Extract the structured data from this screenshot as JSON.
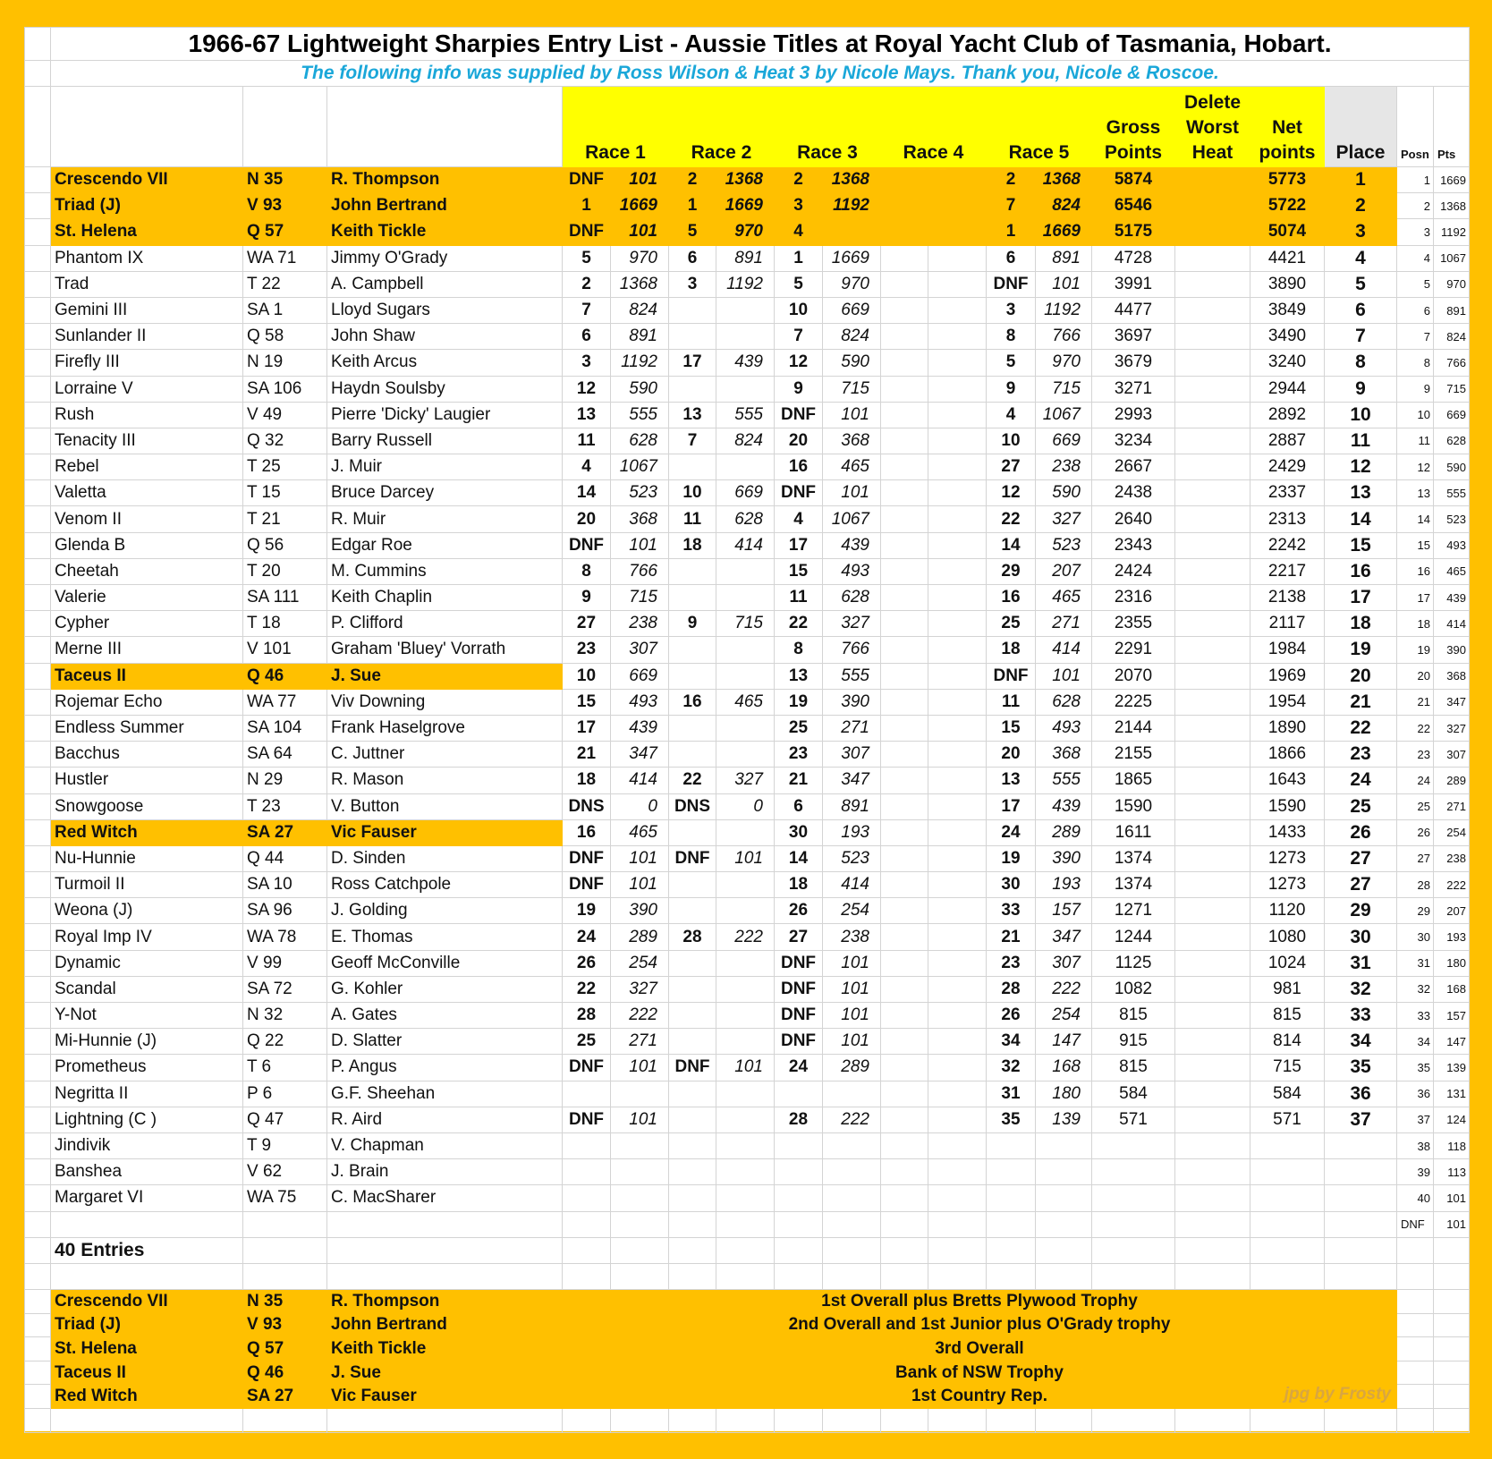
{
  "title": "1966-67 Lightweight Sharpies Entry List - Aussie Titles at Royal Yacht Club of Tasmania, Hobart.",
  "subtitle": "The following info was supplied by Ross Wilson & Heat 3 by Nicole Mays. Thank you, Nicole & Roscoe.",
  "colors": {
    "border": "#ffc000",
    "header_yellow": "#ffff00",
    "highlight": "#ffc000",
    "subtitle": "#1aa7d9"
  },
  "headers": {
    "race1": "Race 1",
    "race2": "Race 2",
    "race3": "Race 3",
    "race4": "Race 4",
    "race5": "Race 5",
    "gross": [
      "Gross",
      "Points"
    ],
    "delete": [
      "Delete",
      "Worst",
      "Heat"
    ],
    "net": [
      "Net",
      "points"
    ],
    "place": "Place",
    "posn": "Posn",
    "pts": "Pts"
  },
  "rows": [
    {
      "highlight": "full",
      "cells": [
        "Crescendo VII",
        "N 35",
        "R. Thompson",
        "DNF",
        "101",
        "2",
        "1368",
        "2",
        "1368",
        "",
        "",
        "2",
        "1368",
        "5874",
        "",
        "5773",
        "1",
        "1",
        "1669"
      ]
    },
    {
      "highlight": "full",
      "cells": [
        "Triad (J)",
        "V 93",
        "John Bertrand",
        "1",
        "1669",
        "1",
        "1669",
        "3",
        "1192",
        "",
        "",
        "7",
        "824",
        "6546",
        "",
        "5722",
        "2",
        "2",
        "1368"
      ]
    },
    {
      "highlight": "full",
      "cells": [
        "St. Helena",
        "Q 57",
        "Keith Tickle",
        "DNF",
        "101",
        "5",
        "970",
        "4",
        "",
        "",
        "",
        "1",
        "1669",
        "5175",
        "",
        "5074",
        "3",
        "3",
        "1192"
      ]
    },
    {
      "cells": [
        "Phantom IX",
        "WA 71",
        "Jimmy O'Grady",
        "5",
        "970",
        "6",
        "891",
        "1",
        "1669",
        "",
        "",
        "6",
        "891",
        "4728",
        "",
        "4421",
        "4",
        "4",
        "1067"
      ]
    },
    {
      "cells": [
        "Trad",
        "T 22",
        "A. Campbell",
        "2",
        "1368",
        "3",
        "1192",
        "5",
        "970",
        "",
        "",
        "DNF",
        "101",
        "3991",
        "",
        "3890",
        "5",
        "5",
        "970"
      ]
    },
    {
      "cells": [
        "Gemini III",
        "SA 1",
        "Lloyd Sugars",
        "7",
        "824",
        "",
        "",
        "10",
        "669",
        "",
        "",
        "3",
        "1192",
        "4477",
        "",
        "3849",
        "6",
        "6",
        "891"
      ]
    },
    {
      "cells": [
        "Sunlander II",
        "Q 58",
        "John Shaw",
        "6",
        "891",
        "",
        "",
        "7",
        "824",
        "",
        "",
        "8",
        "766",
        "3697",
        "",
        "3490",
        "7",
        "7",
        "824"
      ]
    },
    {
      "cells": [
        "Firefly III",
        "N 19",
        "Keith Arcus",
        "3",
        "1192",
        "17",
        "439",
        "12",
        "590",
        "",
        "",
        "5",
        "970",
        "3679",
        "",
        "3240",
        "8",
        "8",
        "766"
      ]
    },
    {
      "cells": [
        "Lorraine V",
        "SA 106",
        "Haydn Soulsby",
        "12",
        "590",
        "",
        "",
        "9",
        "715",
        "",
        "",
        "9",
        "715",
        "3271",
        "",
        "2944",
        "9",
        "9",
        "715"
      ]
    },
    {
      "cells": [
        "Rush",
        "V 49",
        "Pierre 'Dicky' Laugier",
        "13",
        "555",
        "13",
        "555",
        "DNF",
        "101",
        "",
        "",
        "4",
        "1067",
        "2993",
        "",
        "2892",
        "10",
        "10",
        "669"
      ]
    },
    {
      "cells": [
        "Tenacity III",
        "Q 32",
        "Barry Russell",
        "11",
        "628",
        "7",
        "824",
        "20",
        "368",
        "",
        "",
        "10",
        "669",
        "3234",
        "",
        "2887",
        "11",
        "11",
        "628"
      ]
    },
    {
      "cells": [
        "Rebel",
        "T 25",
        "J. Muir",
        "4",
        "1067",
        "",
        "",
        "16",
        "465",
        "",
        "",
        "27",
        "238",
        "2667",
        "",
        "2429",
        "12",
        "12",
        "590"
      ]
    },
    {
      "cells": [
        "Valetta",
        "T 15",
        "Bruce Darcey",
        "14",
        "523",
        "10",
        "669",
        "DNF",
        "101",
        "",
        "",
        "12",
        "590",
        "2438",
        "",
        "2337",
        "13",
        "13",
        "555"
      ]
    },
    {
      "cells": [
        "Venom II",
        "T 21",
        "R. Muir",
        "20",
        "368",
        "11",
        "628",
        "4",
        "1067",
        "",
        "",
        "22",
        "327",
        "2640",
        "",
        "2313",
        "14",
        "14",
        "523"
      ]
    },
    {
      "cells": [
        "Glenda B",
        "Q 56",
        "Edgar Roe",
        "DNF",
        "101",
        "18",
        "414",
        "17",
        "439",
        "",
        "",
        "14",
        "523",
        "2343",
        "",
        "2242",
        "15",
        "15",
        "493"
      ]
    },
    {
      "cells": [
        "Cheetah",
        "T 20",
        "M. Cummins",
        "8",
        "766",
        "",
        "",
        "15",
        "493",
        "",
        "",
        "29",
        "207",
        "2424",
        "",
        "2217",
        "16",
        "16",
        "465"
      ]
    },
    {
      "cells": [
        "Valerie",
        "SA 111",
        "Keith Chaplin",
        "9",
        "715",
        "",
        "",
        "11",
        "628",
        "",
        "",
        "16",
        "465",
        "2316",
        "",
        "2138",
        "17",
        "17",
        "439"
      ]
    },
    {
      "cells": [
        "Cypher",
        "T 18",
        "P. Clifford",
        "27",
        "238",
        "9",
        "715",
        "22",
        "327",
        "",
        "",
        "25",
        "271",
        "2355",
        "",
        "2117",
        "18",
        "18",
        "414"
      ]
    },
    {
      "cells": [
        "Merne III",
        "V 101",
        "Graham 'Bluey' Vorrath",
        "23",
        "307",
        "",
        "",
        "8",
        "766",
        "",
        "",
        "18",
        "414",
        "2291",
        "",
        "1984",
        "19",
        "19",
        "390"
      ]
    },
    {
      "highlight": "name",
      "cells": [
        "Taceus II",
        "Q 46",
        "J. Sue",
        "10",
        "669",
        "",
        "",
        "13",
        "555",
        "",
        "",
        "DNF",
        "101",
        "2070",
        "",
        "1969",
        "20",
        "20",
        "368"
      ]
    },
    {
      "cells": [
        "Rojemar Echo",
        "WA 77",
        "Viv Downing",
        "15",
        "493",
        "16",
        "465",
        "19",
        "390",
        "",
        "",
        "11",
        "628",
        "2225",
        "",
        "1954",
        "21",
        "21",
        "347"
      ]
    },
    {
      "cells": [
        "Endless Summer",
        "SA 104",
        "Frank Haselgrove",
        "17",
        "439",
        "",
        "",
        "25",
        "271",
        "",
        "",
        "15",
        "493",
        "2144",
        "",
        "1890",
        "22",
        "22",
        "327"
      ]
    },
    {
      "cells": [
        "Bacchus",
        "SA 64",
        "C. Juttner",
        "21",
        "347",
        "",
        "",
        "23",
        "307",
        "",
        "",
        "20",
        "368",
        "2155",
        "",
        "1866",
        "23",
        "23",
        "307"
      ]
    },
    {
      "cells": [
        "Hustler",
        "N 29",
        "R. Mason",
        "18",
        "414",
        "22",
        "327",
        "21",
        "347",
        "",
        "",
        "13",
        "555",
        "1865",
        "",
        "1643",
        "24",
        "24",
        "289"
      ]
    },
    {
      "cells": [
        "Snowgoose",
        "T 23",
        "V. Button",
        "DNS",
        "0",
        "DNS",
        "0",
        "6",
        "891",
        "",
        "",
        "17",
        "439",
        "1590",
        "",
        "1590",
        "25",
        "25",
        "271"
      ]
    },
    {
      "highlight": "name",
      "cells": [
        "Red Witch",
        "SA 27",
        "Vic Fauser",
        "16",
        "465",
        "",
        "",
        "30",
        "193",
        "",
        "",
        "24",
        "289",
        "1611",
        "",
        "1433",
        "26",
        "26",
        "254"
      ]
    },
    {
      "cells": [
        "Nu-Hunnie",
        "Q 44",
        "D. Sinden",
        "DNF",
        "101",
        "DNF",
        "101",
        "14",
        "523",
        "",
        "",
        "19",
        "390",
        "1374",
        "",
        "1273",
        "27",
        "27",
        "238"
      ]
    },
    {
      "cells": [
        "Turmoil II",
        "SA 10",
        "Ross Catchpole",
        "DNF",
        "101",
        "",
        "",
        "18",
        "414",
        "",
        "",
        "30",
        "193",
        "1374",
        "",
        "1273",
        "27",
        "28",
        "222"
      ]
    },
    {
      "cells": [
        "Weona (J)",
        "SA 96",
        "J. Golding",
        "19",
        "390",
        "",
        "",
        "26",
        "254",
        "",
        "",
        "33",
        "157",
        "1271",
        "",
        "1120",
        "29",
        "29",
        "207"
      ]
    },
    {
      "cells": [
        "Royal Imp IV",
        "WA 78",
        "E. Thomas",
        "24",
        "289",
        "28",
        "222",
        "27",
        "238",
        "",
        "",
        "21",
        "347",
        "1244",
        "",
        "1080",
        "30",
        "30",
        "193"
      ]
    },
    {
      "cells": [
        "Dynamic",
        "V 99",
        "Geoff McConville",
        "26",
        "254",
        "",
        "",
        "DNF",
        "101",
        "",
        "",
        "23",
        "307",
        "1125",
        "",
        "1024",
        "31",
        "31",
        "180"
      ]
    },
    {
      "cells": [
        "Scandal",
        "SA 72",
        "G. Kohler",
        "22",
        "327",
        "",
        "",
        "DNF",
        "101",
        "",
        "",
        "28",
        "222",
        "1082",
        "",
        "981",
        "32",
        "32",
        "168"
      ]
    },
    {
      "cells": [
        "Y-Not",
        "N 32",
        "A. Gates",
        "28",
        "222",
        "",
        "",
        "DNF",
        "101",
        "",
        "",
        "26",
        "254",
        "815",
        "",
        "815",
        "33",
        "33",
        "157"
      ]
    },
    {
      "cells": [
        "Mi-Hunnie (J)",
        "Q 22",
        "D. Slatter",
        "25",
        "271",
        "",
        "",
        "DNF",
        "101",
        "",
        "",
        "34",
        "147",
        "915",
        "",
        "814",
        "34",
        "34",
        "147"
      ]
    },
    {
      "cells": [
        "Prometheus",
        "T 6",
        "P. Angus",
        "DNF",
        "101",
        "DNF",
        "101",
        "24",
        "289",
        "",
        "",
        "32",
        "168",
        "815",
        "",
        "715",
        "35",
        "35",
        "139"
      ]
    },
    {
      "cells": [
        "Negritta II",
        "P 6",
        "G.F. Sheehan",
        "",
        "",
        "",
        "",
        "",
        "",
        "",
        "",
        "31",
        "180",
        "584",
        "",
        "584",
        "36",
        "36",
        "131"
      ]
    },
    {
      "cells": [
        "Lightning (C )",
        "Q 47",
        "R. Aird",
        "DNF",
        "101",
        "",
        "",
        "28",
        "222",
        "",
        "",
        "35",
        "139",
        "571",
        "",
        "571",
        "37",
        "37",
        "124"
      ]
    },
    {
      "cells": [
        "Jindivik",
        "T 9",
        "V. Chapman",
        "",
        "",
        "",
        "",
        "",
        "",
        "",
        "",
        "",
        "",
        "",
        "",
        "",
        "",
        "38",
        "118"
      ]
    },
    {
      "cells": [
        "Banshea",
        "V 62",
        "J. Brain",
        "",
        "",
        "",
        "",
        "",
        "",
        "",
        "",
        "",
        "",
        "",
        "",
        "",
        "",
        "39",
        "113"
      ]
    },
    {
      "cells": [
        "Margaret VI",
        "WA 75",
        "C. MacSharer",
        "",
        "",
        "",
        "",
        "",
        "",
        "",
        "",
        "",
        "",
        "",
        "",
        "",
        "",
        "40",
        "101"
      ]
    }
  ],
  "dnf_points": {
    "label": "DNF",
    "pts": "101"
  },
  "entries_label": "40 Entries",
  "awards": [
    {
      "boat": "Crescendo VII",
      "sail": "N 35",
      "skipper": "R. Thompson",
      "award": "1st Overall plus Bretts Plywood Trophy"
    },
    {
      "boat": "Triad (J)",
      "sail": "V 93",
      "skipper": "John Bertrand",
      "award": "2nd Overall and 1st Junior plus O'Grady trophy"
    },
    {
      "boat": "St. Helena",
      "sail": "Q 57",
      "skipper": "Keith Tickle",
      "award": "3rd Overall"
    },
    {
      "boat": "Taceus II",
      "sail": "Q 46",
      "skipper": "J. Sue",
      "award": "Bank of NSW Trophy"
    },
    {
      "boat": "Red Witch",
      "sail": "SA 27",
      "skipper": "Vic Fauser",
      "award": "1st Country Rep."
    }
  ],
  "watermark": "jpg by Frosty"
}
